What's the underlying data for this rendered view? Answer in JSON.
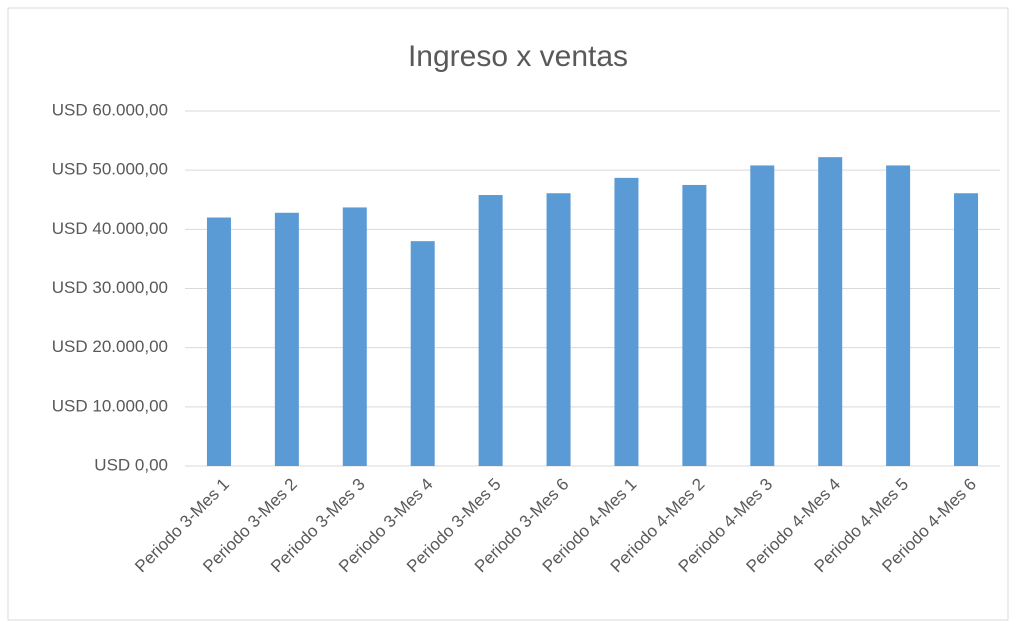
{
  "chart_data": {
    "type": "bar",
    "title": "Ingreso x ventas",
    "categories": [
      "Periodo 3-Mes 1",
      "Periodo 3-Mes 2",
      "Periodo 3-Mes 3",
      "Periodo 3-Mes 4",
      "Periodo 3-Mes 5",
      "Periodo 3-Mes 6",
      "Periodo 4-Mes 1",
      "Periodo 4-Mes 2",
      "Periodo 4-Mes 3",
      "Periodo 4-Mes 4",
      "Periodo 4-Mes 5",
      "Periodo 4-Mes 6"
    ],
    "values": [
      42000,
      42800,
      43700,
      38000,
      45800,
      46100,
      48700,
      47500,
      50800,
      52200,
      50800,
      46100
    ],
    "color": "#5b9bd5",
    "ylim": [
      0,
      60000
    ],
    "yticks": [
      {
        "value": 0,
        "label": "USD 0,00"
      },
      {
        "value": 10000,
        "label": "USD 10.000,00"
      },
      {
        "value": 20000,
        "label": "USD 20.000,00"
      },
      {
        "value": 30000,
        "label": "USD 30.000,00"
      },
      {
        "value": 40000,
        "label": "USD 40.000,00"
      },
      {
        "value": 50000,
        "label": "USD 50.000,00"
      },
      {
        "value": 60000,
        "label": "USD 60.000,00"
      }
    ],
    "grid": true
  }
}
